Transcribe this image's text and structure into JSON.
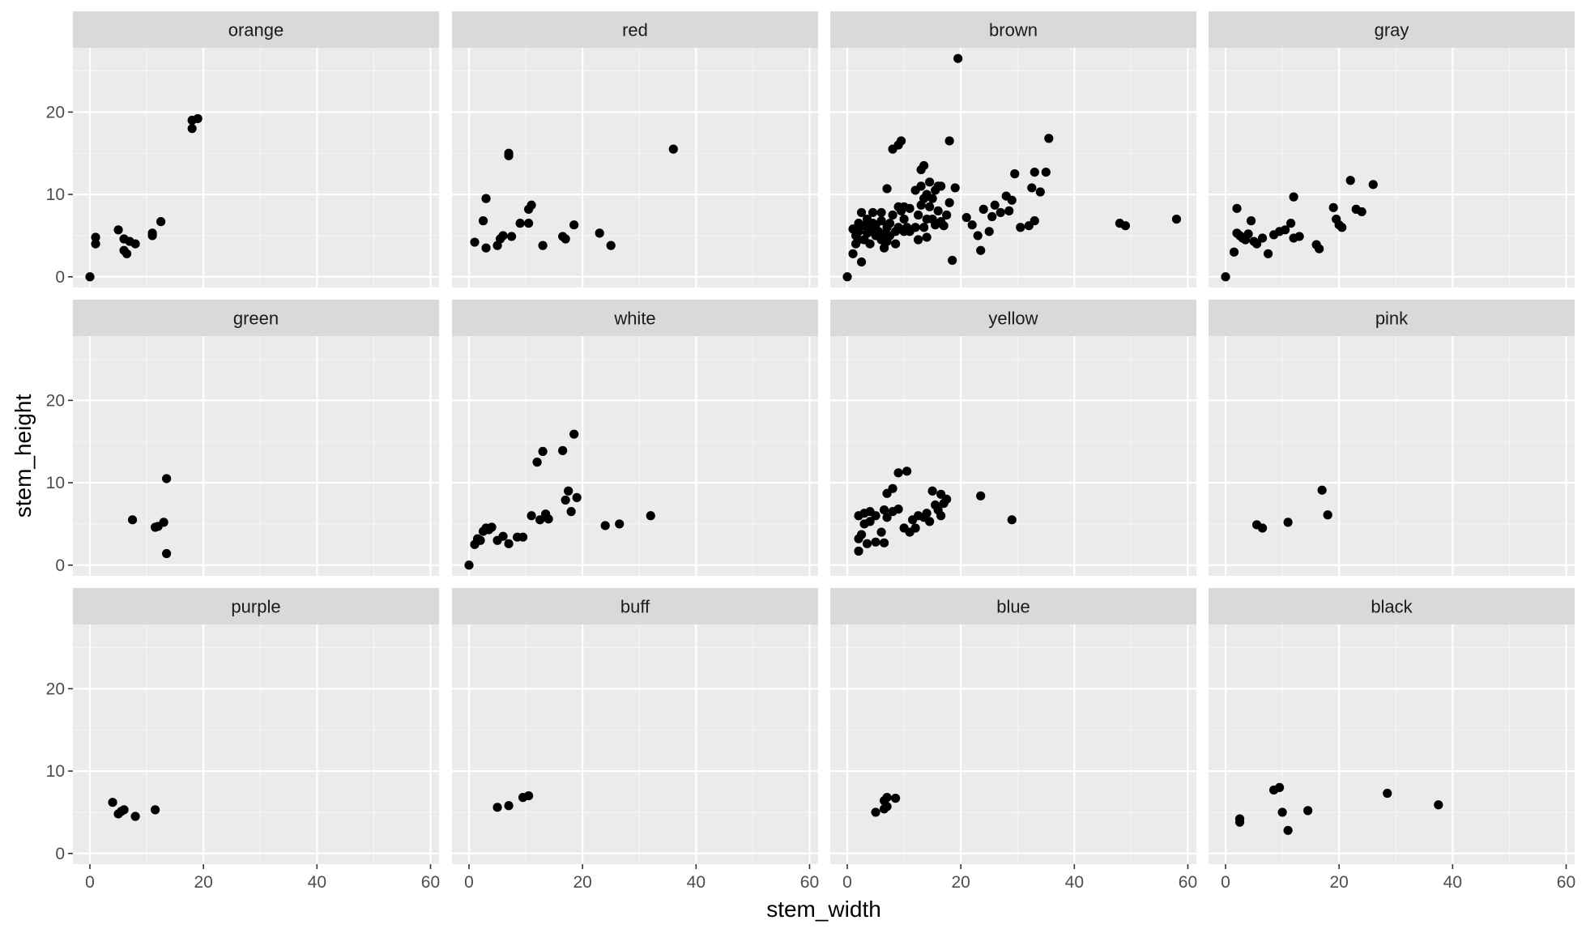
{
  "chart_data": {
    "type": "scatter",
    "xlabel": "stem_width",
    "ylabel": "stem_height",
    "xlim": [
      -3,
      61.5
    ],
    "ylim": [
      -1.3,
      27.8
    ],
    "x_ticks": [
      0,
      20,
      40,
      60
    ],
    "y_ticks": [
      0,
      10,
      20
    ],
    "grid": true,
    "facets": [
      {
        "label": "orange",
        "points": [
          [
            0,
            0
          ],
          [
            1,
            4
          ],
          [
            1,
            4.8
          ],
          [
            5,
            5.7
          ],
          [
            6,
            3.2
          ],
          [
            6.5,
            2.8
          ],
          [
            6,
            4.6
          ],
          [
            7,
            4.3
          ],
          [
            8,
            4
          ],
          [
            11,
            5
          ],
          [
            11,
            5.3
          ],
          [
            12.5,
            6.7
          ],
          [
            18,
            18
          ],
          [
            18,
            19
          ],
          [
            19,
            19.2
          ]
        ]
      },
      {
        "label": "red",
        "points": [
          [
            1,
            4.2
          ],
          [
            2.5,
            6.8
          ],
          [
            3,
            9.5
          ],
          [
            3,
            3.5
          ],
          [
            5,
            3.8
          ],
          [
            5.5,
            4.6
          ],
          [
            6,
            5
          ],
          [
            7,
            14.7
          ],
          [
            7,
            15
          ],
          [
            7.5,
            4.9
          ],
          [
            9,
            6.5
          ],
          [
            10.5,
            6.5
          ],
          [
            10.5,
            8.2
          ],
          [
            11,
            8.7
          ],
          [
            13,
            3.8
          ],
          [
            16.5,
            4.9
          ],
          [
            17,
            4.6
          ],
          [
            18.5,
            6.3
          ],
          [
            23,
            5.3
          ],
          [
            25,
            3.8
          ],
          [
            36,
            15.5
          ]
        ]
      },
      {
        "label": "brown",
        "points": [
          [
            0,
            0
          ],
          [
            1,
            5.8
          ],
          [
            1,
            2.8
          ],
          [
            1.5,
            5
          ],
          [
            1.5,
            4
          ],
          [
            2,
            6.5
          ],
          [
            2,
            4.5
          ],
          [
            2,
            5.5
          ],
          [
            2.5,
            1.8
          ],
          [
            2.5,
            7.8
          ],
          [
            3,
            6.2
          ],
          [
            3,
            4.5
          ],
          [
            3.5,
            5.3
          ],
          [
            3.5,
            7
          ],
          [
            4,
            4
          ],
          [
            4,
            5.8
          ],
          [
            4.5,
            6.5
          ],
          [
            4.5,
            7.8
          ],
          [
            5,
            5
          ],
          [
            5,
            6.3
          ],
          [
            5.5,
            5.5
          ],
          [
            6,
            4.5
          ],
          [
            6,
            6.8
          ],
          [
            6,
            7.8
          ],
          [
            6.5,
            3.5
          ],
          [
            6.5,
            5.2
          ],
          [
            7,
            4.3
          ],
          [
            7,
            6
          ],
          [
            7,
            10.7
          ],
          [
            7.5,
            5
          ],
          [
            7.5,
            6.5
          ],
          [
            8,
            15.5
          ],
          [
            8,
            7.5
          ],
          [
            8.5,
            4
          ],
          [
            8.5,
            5.5
          ],
          [
            9,
            8.5
          ],
          [
            9,
            6
          ],
          [
            9,
            16
          ],
          [
            9.5,
            16.5
          ],
          [
            9.5,
            8
          ],
          [
            10,
            5.5
          ],
          [
            10,
            7
          ],
          [
            10,
            8.5
          ],
          [
            10.5,
            6
          ],
          [
            11,
            5.5
          ],
          [
            11,
            8.3
          ],
          [
            12,
            10.5
          ],
          [
            12,
            6
          ],
          [
            12.5,
            4.5
          ],
          [
            12.5,
            7.5
          ],
          [
            13,
            8.7
          ],
          [
            13,
            13
          ],
          [
            13,
            11
          ],
          [
            13.5,
            13.5
          ],
          [
            13.5,
            9.5
          ],
          [
            13.5,
            6
          ],
          [
            14,
            4.8
          ],
          [
            14,
            7
          ],
          [
            14,
            10
          ],
          [
            14.5,
            8.5
          ],
          [
            14.5,
            11.5
          ],
          [
            15,
            7
          ],
          [
            15,
            9.5
          ],
          [
            15.5,
            10.5
          ],
          [
            15.5,
            6.3
          ],
          [
            16,
            8
          ],
          [
            16,
            11
          ],
          [
            16.5,
            6.7
          ],
          [
            16.5,
            11
          ],
          [
            17,
            6.2
          ],
          [
            17.5,
            7.5
          ],
          [
            18,
            16.5
          ],
          [
            18,
            9
          ],
          [
            18.5,
            2
          ],
          [
            19,
            10.8
          ],
          [
            19.5,
            26.5
          ],
          [
            21,
            7.2
          ],
          [
            22,
            6.3
          ],
          [
            23,
            5
          ],
          [
            23.5,
            3.2
          ],
          [
            24,
            8.2
          ],
          [
            25,
            5.5
          ],
          [
            25.5,
            7.3
          ],
          [
            26,
            8.7
          ],
          [
            27,
            7.8
          ],
          [
            28,
            9.8
          ],
          [
            28.5,
            8
          ],
          [
            29,
            9.3
          ],
          [
            29.5,
            12.5
          ],
          [
            30.5,
            6
          ],
          [
            32,
            6.2
          ],
          [
            32.5,
            10.8
          ],
          [
            33,
            6.8
          ],
          [
            33,
            12.7
          ],
          [
            34,
            10.3
          ],
          [
            35,
            12.7
          ],
          [
            35.5,
            16.8
          ],
          [
            48,
            6.5
          ],
          [
            49,
            6.2
          ],
          [
            58,
            7
          ]
        ]
      },
      {
        "label": "gray",
        "points": [
          [
            0,
            0
          ],
          [
            1.5,
            3
          ],
          [
            2,
            8.3
          ],
          [
            2,
            5.3
          ],
          [
            2.5,
            5
          ],
          [
            3,
            4.7
          ],
          [
            3.5,
            4.5
          ],
          [
            4,
            5.2
          ],
          [
            4.5,
            6.8
          ],
          [
            5,
            4.3
          ],
          [
            5.5,
            4
          ],
          [
            6.5,
            4.7
          ],
          [
            7.5,
            2.8
          ],
          [
            8.5,
            5.1
          ],
          [
            9.5,
            5.5
          ],
          [
            10.5,
            5.7
          ],
          [
            11.5,
            6.5
          ],
          [
            12,
            4.7
          ],
          [
            12,
            9.7
          ],
          [
            13,
            4.9
          ],
          [
            16,
            3.9
          ],
          [
            16.5,
            3.4
          ],
          [
            19,
            8.4
          ],
          [
            19.5,
            7
          ],
          [
            20,
            6.3
          ],
          [
            20.5,
            6
          ],
          [
            22,
            11.7
          ],
          [
            23,
            8.2
          ],
          [
            24,
            7.9
          ],
          [
            26,
            11.2
          ]
        ]
      },
      {
        "label": "green",
        "points": [
          [
            7.5,
            5.5
          ],
          [
            11.5,
            4.6
          ],
          [
            12,
            4.7
          ],
          [
            13,
            5.2
          ],
          [
            13.5,
            10.5
          ],
          [
            13.5,
            1.4
          ]
        ]
      },
      {
        "label": "white",
        "points": [
          [
            0,
            0
          ],
          [
            1,
            2.5
          ],
          [
            1.5,
            3.2
          ],
          [
            2,
            3
          ],
          [
            2.5,
            4.1
          ],
          [
            3,
            4.5
          ],
          [
            3.5,
            4.3
          ],
          [
            4,
            4.6
          ],
          [
            5,
            3
          ],
          [
            6,
            3.5
          ],
          [
            7,
            2.6
          ],
          [
            8.5,
            3.4
          ],
          [
            9.5,
            3.4
          ],
          [
            11,
            6
          ],
          [
            12,
            12.5
          ],
          [
            12.5,
            5.5
          ],
          [
            13,
            13.8
          ],
          [
            13.5,
            6.2
          ],
          [
            14,
            5.6
          ],
          [
            16.5,
            13.9
          ],
          [
            17,
            7.9
          ],
          [
            17.5,
            9
          ],
          [
            18,
            6.5
          ],
          [
            18.5,
            15.9
          ],
          [
            19,
            8.2
          ],
          [
            24,
            4.8
          ],
          [
            26.5,
            5
          ],
          [
            32,
            6
          ]
        ]
      },
      {
        "label": "yellow",
        "points": [
          [
            2,
            1.7
          ],
          [
            2,
            3.2
          ],
          [
            2,
            6
          ],
          [
            2.5,
            3.7
          ],
          [
            3,
            6.3
          ],
          [
            3,
            5
          ],
          [
            3.5,
            2.6
          ],
          [
            4,
            5.3
          ],
          [
            4,
            6.5
          ],
          [
            5,
            6
          ],
          [
            5,
            2.8
          ],
          [
            6,
            4
          ],
          [
            6.5,
            2.7
          ],
          [
            6.5,
            6.7
          ],
          [
            7,
            8.7
          ],
          [
            7,
            5.8
          ],
          [
            8,
            9.3
          ],
          [
            8,
            6.5
          ],
          [
            9,
            6.8
          ],
          [
            9,
            11.2
          ],
          [
            10,
            4.5
          ],
          [
            10.5,
            11.4
          ],
          [
            11,
            4
          ],
          [
            11.5,
            5.5
          ],
          [
            12,
            4.5
          ],
          [
            12.5,
            6
          ],
          [
            13.5,
            5.8
          ],
          [
            14,
            6.3
          ],
          [
            14.5,
            5.3
          ],
          [
            15,
            9
          ],
          [
            15.5,
            7.3
          ],
          [
            16,
            6.7
          ],
          [
            16.5,
            8.6
          ],
          [
            17,
            7.5
          ],
          [
            16.5,
            6
          ],
          [
            17.5,
            8
          ],
          [
            23.5,
            8.4
          ],
          [
            29,
            5.5
          ]
        ]
      },
      {
        "label": "pink",
        "points": [
          [
            5.5,
            4.9
          ],
          [
            6.5,
            4.5
          ],
          [
            11,
            5.2
          ],
          [
            17,
            9.1
          ],
          [
            18,
            6.1
          ]
        ]
      },
      {
        "label": "purple",
        "points": [
          [
            4,
            6.2
          ],
          [
            5,
            4.8
          ],
          [
            5.5,
            5.1
          ],
          [
            6,
            5.3
          ],
          [
            8,
            4.5
          ],
          [
            11.5,
            5.3
          ]
        ]
      },
      {
        "label": "buff",
        "points": [
          [
            5,
            5.6
          ],
          [
            7,
            5.8
          ],
          [
            9.5,
            6.8
          ],
          [
            10.5,
            7
          ]
        ]
      },
      {
        "label": "blue",
        "points": [
          [
            5,
            5
          ],
          [
            6.5,
            5.4
          ],
          [
            6.5,
            6.4
          ],
          [
            7,
            6.8
          ],
          [
            7,
            5.7
          ],
          [
            8.5,
            6.7
          ]
        ]
      },
      {
        "label": "black",
        "points": [
          [
            2.5,
            3.8
          ],
          [
            2.5,
            4.2
          ],
          [
            8.5,
            7.7
          ],
          [
            9.5,
            8
          ],
          [
            10,
            5
          ],
          [
            11,
            2.8
          ],
          [
            14.5,
            5.2
          ],
          [
            28.5,
            7.3
          ],
          [
            37.5,
            5.9
          ]
        ]
      }
    ]
  }
}
